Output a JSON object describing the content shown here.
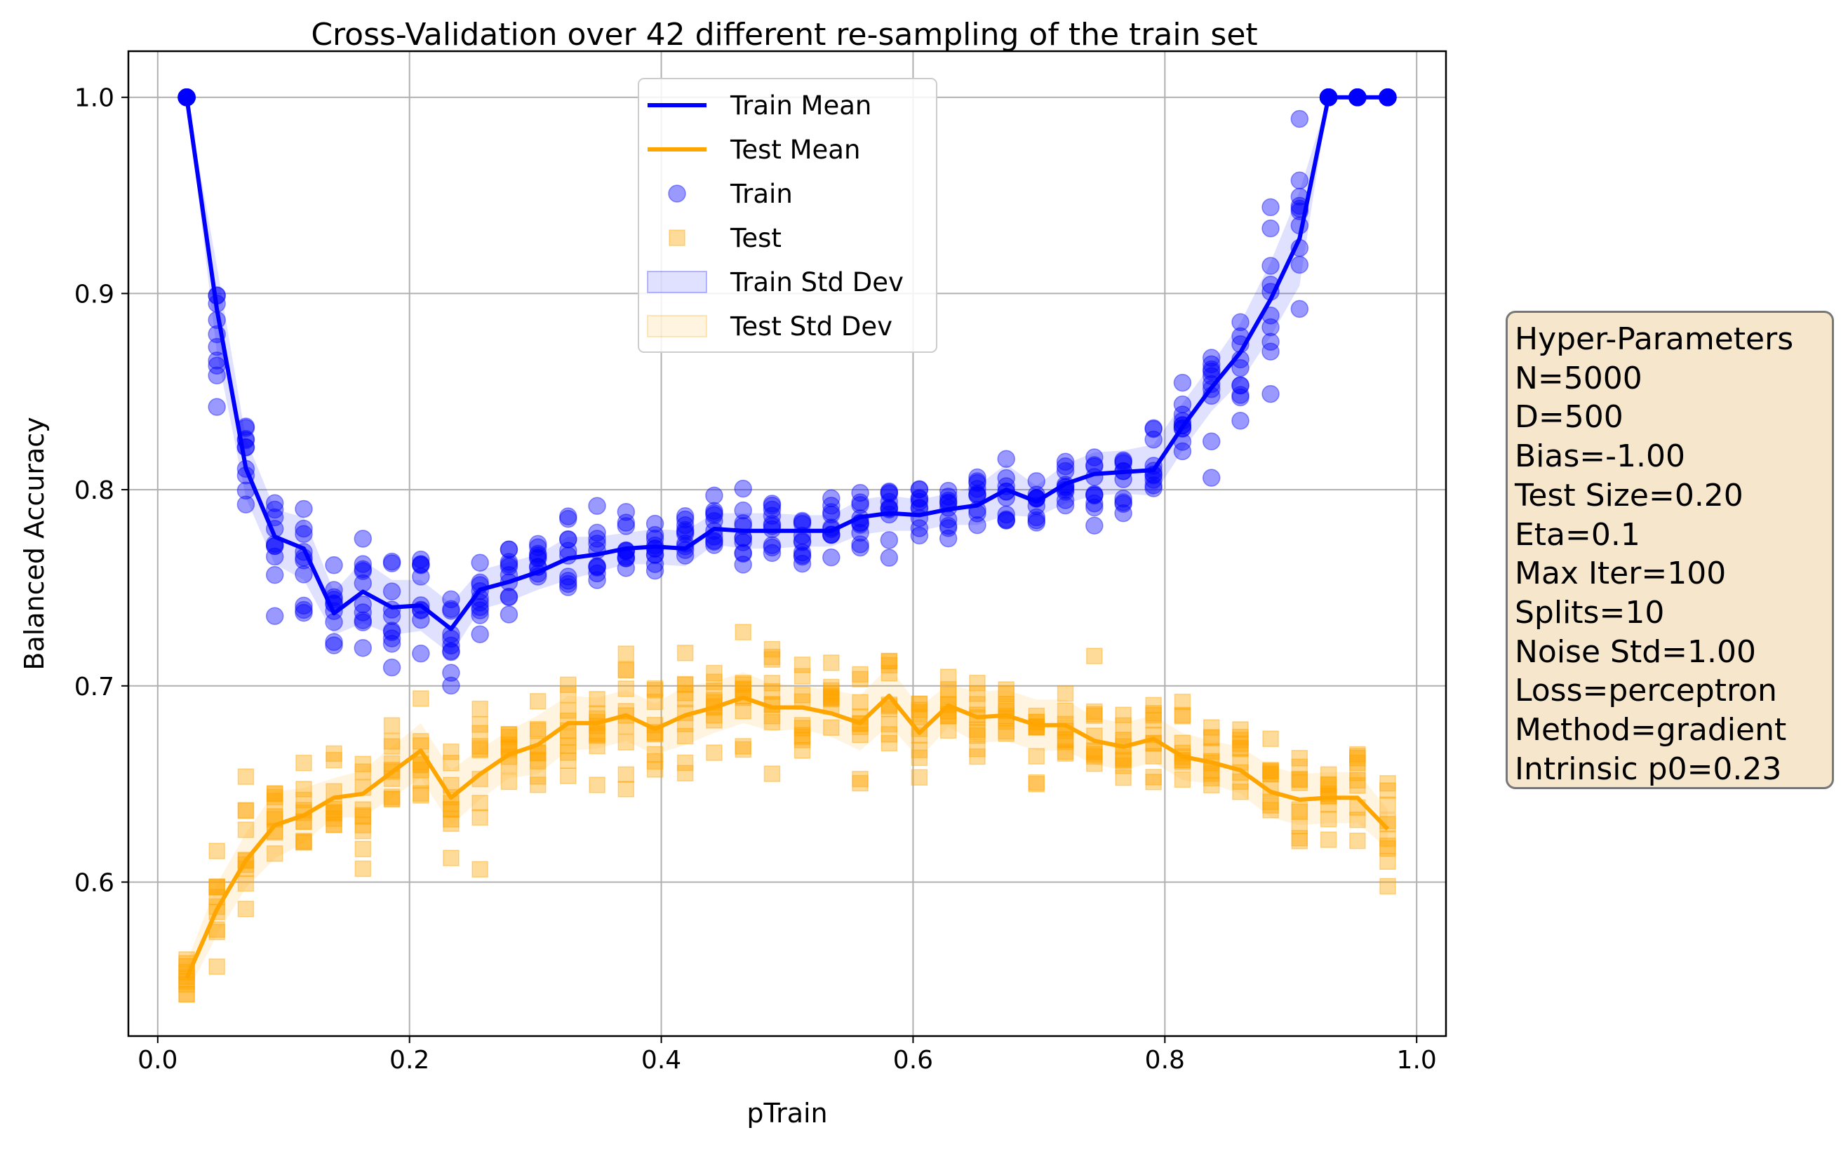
{
  "chart_data": {
    "type": "line",
    "title": "Cross-Validation over 42 different re-sampling of the train set",
    "xlabel": "pTrain",
    "ylabel": "Balanced Accuracy",
    "xlim": [
      -0.0233,
      1.0233
    ],
    "ylim": [
      0.5215,
      1.0235
    ],
    "xticks": [
      "0.0",
      "0.2",
      "0.4",
      "0.6",
      "0.8",
      "1.0"
    ],
    "xtick_values": [
      0.0,
      0.2,
      0.4,
      0.6,
      0.8,
      1.0
    ],
    "yticks": [
      "0.6",
      "0.7",
      "0.8",
      "0.9",
      "1.0"
    ],
    "ytick_values": [
      0.6,
      0.7,
      0.8,
      0.9,
      1.0
    ],
    "grid": true,
    "legend_position": "top-center",
    "x": [
      0.023,
      0.047,
      0.07,
      0.093,
      0.116,
      0.14,
      0.163,
      0.186,
      0.209,
      0.233,
      0.256,
      0.279,
      0.302,
      0.326,
      0.349,
      0.372,
      0.395,
      0.419,
      0.442,
      0.465,
      0.488,
      0.512,
      0.535,
      0.558,
      0.581,
      0.605,
      0.628,
      0.651,
      0.674,
      0.698,
      0.721,
      0.744,
      0.767,
      0.791,
      0.814,
      0.837,
      0.86,
      0.884,
      0.907,
      0.93,
      0.953,
      0.977
    ],
    "series": [
      {
        "name": "Train Mean",
        "color": "#0000ff",
        "values": [
          1.0,
          0.892,
          0.811,
          0.776,
          0.77,
          0.737,
          0.748,
          0.74,
          0.741,
          0.729,
          0.749,
          0.753,
          0.758,
          0.765,
          0.767,
          0.77,
          0.771,
          0.77,
          0.78,
          0.779,
          0.779,
          0.779,
          0.779,
          0.786,
          0.788,
          0.787,
          0.79,
          0.792,
          0.8,
          0.794,
          0.803,
          0.808,
          0.809,
          0.81,
          0.832,
          0.852,
          0.87,
          0.897,
          0.928,
          1.0,
          1.0,
          1.0
        ],
        "std": [
          0.0,
          0.022,
          0.015,
          0.014,
          0.016,
          0.011,
          0.016,
          0.014,
          0.013,
          0.013,
          0.01,
          0.01,
          0.009,
          0.011,
          0.009,
          0.008,
          0.009,
          0.009,
          0.008,
          0.009,
          0.009,
          0.008,
          0.008,
          0.009,
          0.009,
          0.008,
          0.008,
          0.01,
          0.013,
          0.008,
          0.01,
          0.011,
          0.011,
          0.013,
          0.012,
          0.012,
          0.015,
          0.019,
          0.024,
          0.0,
          0.0,
          0.0
        ]
      },
      {
        "name": "Test Mean",
        "color": "#ffa500",
        "values": [
          0.551,
          0.586,
          0.611,
          0.629,
          0.634,
          0.643,
          0.645,
          0.656,
          0.667,
          0.643,
          0.655,
          0.665,
          0.67,
          0.681,
          0.681,
          0.685,
          0.678,
          0.685,
          0.689,
          0.694,
          0.689,
          0.689,
          0.686,
          0.681,
          0.695,
          0.676,
          0.69,
          0.684,
          0.685,
          0.68,
          0.68,
          0.672,
          0.669,
          0.673,
          0.664,
          0.661,
          0.657,
          0.646,
          0.642,
          0.643,
          0.643,
          0.627
        ],
        "std": [
          0.008,
          0.013,
          0.014,
          0.017,
          0.014,
          0.01,
          0.012,
          0.013,
          0.014,
          0.014,
          0.013,
          0.012,
          0.015,
          0.014,
          0.013,
          0.013,
          0.013,
          0.015,
          0.013,
          0.013,
          0.012,
          0.011,
          0.012,
          0.014,
          0.015,
          0.013,
          0.011,
          0.013,
          0.013,
          0.013,
          0.013,
          0.012,
          0.012,
          0.012,
          0.012,
          0.011,
          0.012,
          0.013,
          0.013,
          0.013,
          0.013,
          0.01
        ]
      }
    ],
    "scatter_series": [
      {
        "name": "Train",
        "marker": "circle",
        "color": "#0000ff",
        "alpha": 0.4
      },
      {
        "name": "Test",
        "marker": "square",
        "color": "#ffa500",
        "alpha": 0.4
      }
    ],
    "band_series": [
      {
        "name": "Train Std Dev",
        "color": "#0000ff",
        "alpha": 0.12
      },
      {
        "name": "Test Std Dev",
        "color": "#ffa500",
        "alpha": 0.12
      }
    ],
    "samples_per_x": 10
  },
  "hyper_params": {
    "title": "Hyper-Parameters",
    "lines": [
      "N=5000",
      "D=500",
      "Bias=-1.00",
      "Test Size=0.20",
      "Eta=0.1",
      "Max Iter=100",
      "Splits=10",
      "Noise Std=1.00",
      "Loss=perceptron",
      "Method=gradient",
      "Intrinsic p0=0.23"
    ]
  }
}
